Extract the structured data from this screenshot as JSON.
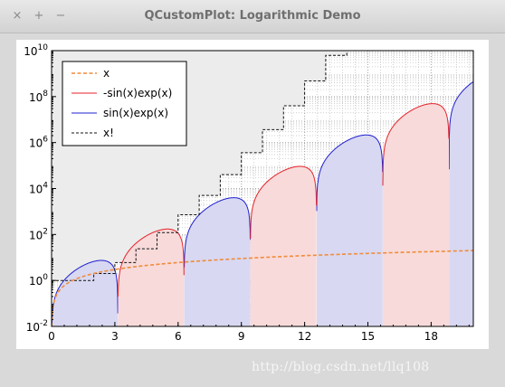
{
  "window": {
    "title": "QCustomPlot: Logarithmic Demo",
    "buttons": {
      "close": "×",
      "maximize": "+",
      "minimize": "−"
    }
  },
  "watermark": "http://blog.csdn.net/llq108",
  "chart_data": {
    "type": "line",
    "title": "",
    "xlabel": "",
    "ylabel": "",
    "xlim": [
      0,
      20
    ],
    "ylim": [
      0.01,
      10000000000
    ],
    "y_scale": "log",
    "grid": true,
    "legend_position": "top-left",
    "x_ticks": [
      0,
      3,
      6,
      9,
      12,
      15,
      18
    ],
    "x_tick_labels": [
      "0",
      "3",
      "6",
      "9",
      "12",
      "15",
      "18"
    ],
    "y_ticks": [
      0.01,
      1,
      100,
      10000,
      1000000,
      100000000,
      10000000000
    ],
    "y_tick_labels": [
      {
        "base": "10",
        "exp": "-2"
      },
      {
        "base": "10",
        "exp": "0"
      },
      {
        "base": "10",
        "exp": "2"
      },
      {
        "base": "10",
        "exp": "4"
      },
      {
        "base": "10",
        "exp": "6"
      },
      {
        "base": "10",
        "exp": "8"
      },
      {
        "base": "10",
        "exp": "10"
      }
    ],
    "series": [
      {
        "name": "x",
        "color": "#f08c3c",
        "style": "dashed",
        "formula": "x"
      },
      {
        "name": "-sin(x)exp(x)",
        "color": "#e4232a",
        "style": "solid",
        "fill": "#f8dada",
        "formula": "-sin(x)exp(x)"
      },
      {
        "name": " sin(x)exp(x)",
        "color": "#2020d0",
        "style": "solid",
        "fill": "#d8d8f2",
        "formula": "sin(x)exp(x)"
      },
      {
        "name": "x!",
        "color": "#111111",
        "style": "dashed",
        "fill": "#ececec",
        "formula": "floor(x)!"
      }
    ]
  }
}
